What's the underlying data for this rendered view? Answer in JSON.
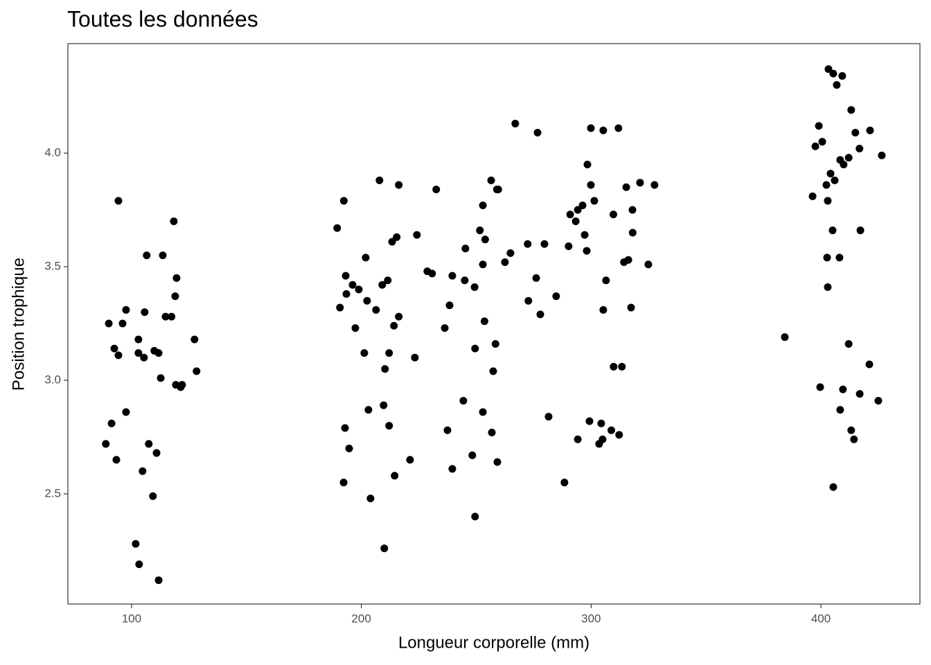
{
  "chart_data": {
    "type": "scatter",
    "title": "Toutes les données",
    "x_label": "Longueur corporelle (mm)",
    "y_label": "Position trophique",
    "color": "#000000",
    "grid": false,
    "xlim": [
      72.3,
      443.1
    ],
    "ylim": [
      2.015,
      4.482
    ],
    "xticks": [
      100,
      200,
      300,
      400
    ],
    "yticks": [
      2.5,
      {
        "value": 3.0,
        "label": "3.0"
      },
      3.5,
      {
        "value": 4.0,
        "label": "4.0"
      }
    ],
    "x": [
      94.3,
      118.4,
      106.6,
      113.6,
      119.6,
      119.0,
      97.6,
      105.7,
      114.8,
      117.4,
      90.1,
      96.1,
      92.5,
      103.0,
      127.4,
      94.3,
      103.0,
      105.4,
      109.9,
      111.8,
      112.7,
      128.3,
      119.3,
      122.0,
      121.4,
      97.6,
      91.3,
      88.8,
      107.5,
      110.9,
      93.4,
      104.8,
      109.3,
      101.8,
      103.3,
      111.8,
      267.0,
      276.7,
      299.9,
      305.3,
      311.9,
      298.4,
      207.9,
      256.5,
      216.3,
      232.6,
      259.0,
      259.6,
      299.9,
      315.3,
      321.3,
      327.6,
      192.4,
      252.9,
      296.3,
      294.2,
      301.4,
      318.0,
      290.9,
      309.7,
      293.3,
      189.5,
      251.6,
      297.2,
      318.1,
      224.2,
      215.4,
      253.9,
      213.4,
      272.4,
      279.7,
      290.2,
      245.3,
      298.1,
      264.9,
      201.9,
      262.5,
      316.2,
      314.3,
      324.9,
      252.9,
      228.7,
      230.8,
      193.2,
      239.6,
      245.0,
      276.1,
      306.5,
      211.5,
      209.1,
      249.3,
      196.2,
      198.9,
      193.5,
      202.5,
      284.8,
      272.7,
      190.7,
      238.4,
      206.4,
      305.3,
      317.4,
      277.9,
      216.3,
      253.6,
      214.2,
      236.3,
      197.4,
      258.4,
      249.5,
      212.1,
      201.3,
      223.3,
      309.8,
      313.4,
      210.3,
      257.4,
      244.4,
      209.7,
      203.1,
      252.9,
      281.5,
      299.3,
      304.4,
      192.9,
      212.1,
      237.5,
      308.8,
      256.8,
      312.2,
      294.2,
      305.0,
      303.5,
      194.7,
      248.3,
      221.2,
      259.2,
      239.6,
      214.5,
      192.3,
      288.4,
      204.0,
      249.5,
      210.0,
      403.3,
      405.4,
      409.3,
      406.9,
      413.2,
      399.1,
      421.4,
      415.0,
      397.6,
      400.6,
      416.8,
      426.5,
      412.1,
      408.4,
      409.9,
      404.2,
      402.4,
      406.0,
      396.4,
      403.0,
      405.1,
      417.2,
      402.7,
      408.1,
      403.0,
      384.3,
      412.1,
      421.1,
      399.7,
      409.6,
      416.9,
      425.0,
      408.4,
      413.2,
      414.4,
      405.4
    ],
    "values": [
      3.79,
      3.7,
      3.55,
      3.55,
      3.45,
      3.37,
      3.31,
      3.3,
      3.28,
      3.28,
      3.25,
      3.25,
      3.14,
      3.18,
      3.18,
      3.11,
      3.12,
      3.1,
      3.13,
      3.12,
      3.01,
      3.04,
      2.98,
      2.98,
      2.97,
      2.86,
      2.81,
      2.72,
      2.72,
      2.68,
      2.65,
      2.6,
      2.49,
      2.28,
      2.19,
      2.12,
      4.13,
      4.09,
      4.11,
      4.1,
      4.11,
      3.95,
      3.88,
      3.88,
      3.86,
      3.84,
      3.84,
      3.84,
      3.86,
      3.85,
      3.87,
      3.86,
      3.79,
      3.77,
      3.77,
      3.75,
      3.79,
      3.75,
      3.73,
      3.73,
      3.7,
      3.67,
      3.66,
      3.64,
      3.65,
      3.64,
      3.63,
      3.62,
      3.61,
      3.6,
      3.6,
      3.59,
      3.58,
      3.57,
      3.56,
      3.54,
      3.52,
      3.53,
      3.52,
      3.51,
      3.51,
      3.48,
      3.47,
      3.46,
      3.46,
      3.44,
      3.45,
      3.44,
      3.44,
      3.42,
      3.41,
      3.42,
      3.4,
      3.38,
      3.35,
      3.37,
      3.35,
      3.32,
      3.33,
      3.31,
      3.31,
      3.32,
      3.29,
      3.28,
      3.26,
      3.24,
      3.23,
      3.23,
      3.16,
      3.14,
      3.12,
      3.12,
      3.1,
      3.06,
      3.06,
      3.05,
      3.04,
      2.91,
      2.89,
      2.87,
      2.86,
      2.84,
      2.82,
      2.81,
      2.79,
      2.8,
      2.78,
      2.78,
      2.77,
      2.76,
      2.74,
      2.74,
      2.72,
      2.7,
      2.67,
      2.65,
      2.64,
      2.61,
      2.58,
      2.55,
      2.55,
      2.48,
      2.4,
      2.26,
      4.37,
      4.35,
      4.34,
      4.3,
      4.19,
      4.12,
      4.1,
      4.09,
      4.03,
      4.05,
      4.02,
      3.99,
      3.98,
      3.97,
      3.95,
      3.91,
      3.86,
      3.88,
      3.81,
      3.79,
      3.66,
      3.66,
      3.54,
      3.54,
      3.41,
      3.19,
      3.16,
      3.07,
      2.97,
      2.96,
      2.94,
      2.91,
      2.87,
      2.78,
      2.74,
      2.53
    ]
  }
}
